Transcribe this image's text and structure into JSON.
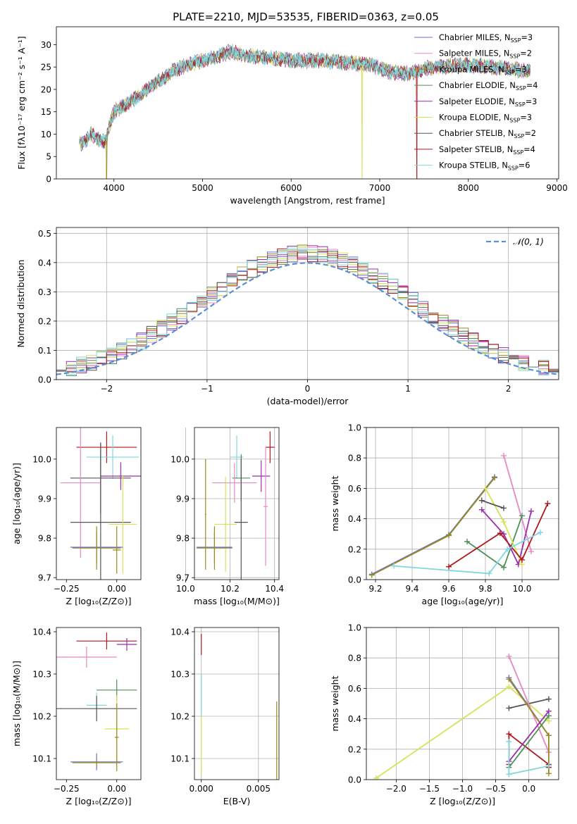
{
  "figure_title": "PLATE=2210, MJD=53535, FIBERID=0363, z=0.05",
  "model_legend": [
    {
      "base": "Chabrier MILES, N",
      "sub": "SSP",
      "suffix": "=3",
      "color": "#6673d6"
    },
    {
      "base": "Salpeter MILES, N",
      "sub": "SSP",
      "suffix": "=2",
      "color": "#e888c4"
    },
    {
      "base": "Kroupa MILES, N",
      "sub": "SSP",
      "suffix": "=3",
      "color": "#9a8a1e"
    },
    {
      "base": "Chabrier ELODIE, N",
      "sub": "SSP",
      "suffix": "=4",
      "color": "#4f8f58"
    },
    {
      "base": "Salpeter ELODIE, N",
      "sub": "SSP",
      "suffix": "=3",
      "color": "#9b2fae"
    },
    {
      "base": "Kroupa ELODIE, N",
      "sub": "SSP",
      "suffix": "=3",
      "color": "#d4e357"
    },
    {
      "base": "Chabrier STELIB, N",
      "sub": "SSP",
      "suffix": "=2",
      "color": "#555555"
    },
    {
      "base": "Salpeter STELIB, N",
      "sub": "SSP",
      "suffix": "=4",
      "color": "#b0191e"
    },
    {
      "base": "Kroupa STELIB, N",
      "sub": "SSP",
      "suffix": "=6",
      "color": "#7fd7e0"
    }
  ],
  "chart_data": [
    {
      "id": "spectrum",
      "type": "line",
      "title": "PLATE=2210, MJD=53535, FIBERID=0363, z=0.05",
      "xlabel": "wavelength [Angstrom, rest frame]",
      "ylabel": "Flux [fλ10⁻¹⁷ erg cm⁻² s⁻¹ A⁻¹]",
      "xlim": [
        3350,
        9020
      ],
      "ylim": [
        0,
        34
      ],
      "xticks": [
        "4000",
        "5000",
        "6000",
        "7000",
        "8000",
        "9000"
      ],
      "yticks": [
        "0",
        "5",
        "10",
        "15",
        "20",
        "25",
        "30"
      ],
      "continuum": [
        [
          3610,
          7.5
        ],
        [
          3750,
          10
        ],
        [
          3900,
          8
        ],
        [
          3950,
          12
        ],
        [
          4000,
          15
        ],
        [
          4200,
          17.5
        ],
        [
          4400,
          20.5
        ],
        [
          4700,
          24.5
        ],
        [
          5000,
          26.5
        ],
        [
          5200,
          27.5
        ],
        [
          5300,
          28.5
        ],
        [
          5500,
          27.5
        ],
        [
          5800,
          27
        ],
        [
          6000,
          26.5
        ],
        [
          6300,
          26.5
        ],
        [
          6600,
          26
        ],
        [
          6900,
          25.5
        ],
        [
          7100,
          24
        ],
        [
          7300,
          23.5
        ],
        [
          7600,
          25
        ],
        [
          8000,
          25.5
        ],
        [
          8500,
          24.5
        ],
        [
          8700,
          24
        ]
      ],
      "dropouts": [
        {
          "x": 3915,
          "model": 2
        },
        {
          "x": 6800,
          "model": 5
        },
        {
          "x": 7420,
          "model": 7
        }
      ]
    },
    {
      "id": "residuals",
      "type": "histogram",
      "xlabel": "(data-model)/error",
      "ylabel": "Normed distribution",
      "xlim": [
        -2.5,
        2.5
      ],
      "ylim": [
        0,
        0.52
      ],
      "xticks": [
        "−2",
        "−1",
        "0",
        "1",
        "2"
      ],
      "yticks": [
        "0.0",
        "0.1",
        "0.2",
        "0.3",
        "0.4",
        "0.5"
      ],
      "bin_width": 0.1,
      "legend": "𝒩(0, 1)",
      "gaussian_sigma": 1.0,
      "gaussian_color": "#5a8ed6"
    },
    {
      "id": "age_vs_Z",
      "type": "errorbar",
      "xlabel": "Z [log₁₀(Z/Z⊙)]",
      "ylabel": "age  [log₁₀(age/yr)]",
      "xlim": [
        -0.3,
        0.12
      ],
      "ylim": [
        9.695,
        10.08
      ],
      "xticks": [
        "−0.25",
        "0.00"
      ],
      "yticks": [
        "9.7",
        "9.8",
        "9.9",
        "10.0"
      ],
      "points": [
        {
          "model": 7,
          "x": -0.05,
          "y": 10.03,
          "xe": 0.15,
          "ye": 0.04
        },
        {
          "model": 8,
          "x": -0.02,
          "y": 10.005,
          "xe": 0.13,
          "ye": 0.055
        },
        {
          "model": 4,
          "x": 0.02,
          "y": 9.957,
          "xe": 0.1,
          "ye": 0.035
        },
        {
          "model": 6,
          "x": -0.08,
          "y": 9.952,
          "xe": 0.15,
          "ye": 0.09
        },
        {
          "model": 1,
          "x": -0.18,
          "y": 9.94,
          "xe": 0.1,
          "ye": 0.19
        },
        {
          "model": 6,
          "x": -0.08,
          "y": 9.84,
          "xe": 0.15,
          "ye": 0.2
        },
        {
          "model": 5,
          "x": 0.03,
          "y": 9.835,
          "xe": 0.07,
          "ye": 0.125
        },
        {
          "model": 0,
          "x": -0.1,
          "y": 9.777,
          "xe": 0.13,
          "ye": 0.04
        },
        {
          "model": 2,
          "x": -0.1,
          "y": 9.775,
          "xe": 0.12,
          "ye": 0.055
        },
        {
          "model": 2,
          "x": 0.0,
          "y": 9.77,
          "xe": 0.02,
          "ye": 0.06
        }
      ]
    },
    {
      "id": "age_vs_mass",
      "type": "errorbar",
      "xlabel": "mass [log₁₀(M/M⊙)]",
      "ylabel": "",
      "xlim": [
        10.04,
        10.42
      ],
      "ylim": [
        9.695,
        10.08
      ],
      "xticks": [
        "10.0",
        "10.2",
        "10.4"
      ],
      "yticks": [
        "9.7",
        "9.8",
        "9.9",
        "10.0"
      ],
      "points": [
        {
          "model": 7,
          "x": 10.38,
          "y": 10.03,
          "xe": 0.02,
          "ye": 0.04
        },
        {
          "model": 8,
          "x": 10.23,
          "y": 10.005,
          "xe": 0.03,
          "ye": 0.055
        },
        {
          "model": 4,
          "x": 10.34,
          "y": 9.957,
          "xe": 0.04,
          "ye": 0.04
        },
        {
          "model": 3,
          "x": 10.25,
          "y": 9.952,
          "xe": 0.04,
          "ye": 0.06
        },
        {
          "model": 1,
          "x": 10.22,
          "y": 9.94,
          "xe": 0.1,
          "ye": 0.05
        },
        {
          "model": 1,
          "x": 10.36,
          "y": 9.88,
          "xe": 0.01,
          "ye": 0.15
        },
        {
          "model": 6,
          "x": 10.25,
          "y": 9.84,
          "xe": 0.03,
          "ye": 0.16
        },
        {
          "model": 5,
          "x": 10.18,
          "y": 9.835,
          "xe": 0.05,
          "ye": 0.12
        },
        {
          "model": 0,
          "x": 10.13,
          "y": 9.777,
          "xe": 0.08,
          "ye": 0.04
        },
        {
          "model": 2,
          "x": 10.13,
          "y": 9.775,
          "xe": 0.08,
          "ye": 0.055
        },
        {
          "model": 2,
          "x": 10.09,
          "y": 9.86,
          "xe": 0.003,
          "ye": 0.14
        }
      ]
    },
    {
      "id": "weight_vs_age",
      "type": "line",
      "xlabel": "age  [log₁₀(age/yr)]",
      "ylabel": "mass weight",
      "xlim": [
        9.15,
        10.2
      ],
      "ylim": [
        0,
        1
      ],
      "xticks": [
        "9.2",
        "9.4",
        "9.6",
        "9.8",
        "10.0"
      ],
      "yticks": [
        "0.0",
        "0.2",
        "0.4",
        "0.6",
        "0.8",
        "1.0"
      ],
      "series": [
        {
          "model": 0,
          "x": [
            9.18,
            9.6,
            9.85
          ],
          "y": [
            0.035,
            0.295,
            0.675
          ]
        },
        {
          "model": 1,
          "x": [
            9.9,
            10.05
          ],
          "y": [
            0.815,
            0.185
          ]
        },
        {
          "model": 2,
          "x": [
            9.18,
            9.6,
            9.85
          ],
          "y": [
            0.03,
            0.29,
            0.67
          ]
        },
        {
          "model": 3,
          "x": [
            9.7,
            9.9,
            10.0
          ],
          "y": [
            0.25,
            0.08,
            0.42
          ]
        },
        {
          "model": 4,
          "x": [
            9.78,
            9.9,
            9.98,
            10.05
          ],
          "y": [
            0.46,
            0.3,
            0.1,
            0.45
          ]
        },
        {
          "model": 5,
          "x": [
            9.8,
            9.9,
            10.0
          ],
          "y": [
            0.6,
            0.38,
            0.1
          ]
        },
        {
          "model": 6,
          "x": [
            9.78,
            9.9
          ],
          "y": [
            0.52,
            0.47
          ]
        },
        {
          "model": 7,
          "x": [
            9.6,
            9.88,
            10.0,
            10.14
          ],
          "y": [
            0.085,
            0.305,
            0.13,
            0.5
          ]
        },
        {
          "model": 8,
          "x": [
            9.3,
            9.82,
            9.92,
            10.1
          ],
          "y": [
            0.09,
            0.04,
            0.2,
            0.31
          ]
        }
      ]
    },
    {
      "id": "mass_vs_Z",
      "type": "errorbar",
      "xlabel": "Z [log₁₀(Z/Z⊙)]",
      "ylabel": "mass [log₁₀(M/M⊙)]",
      "xlim": [
        -0.3,
        0.12
      ],
      "ylim": [
        10.05,
        10.41
      ],
      "xticks": [
        "−0.25",
        "0.00"
      ],
      "yticks": [
        "10.1",
        "10.2",
        "10.3",
        "10.4"
      ],
      "points": [
        {
          "model": 7,
          "x": -0.05,
          "y": 10.378,
          "xe": 0.15,
          "ye": 0.02
        },
        {
          "model": 4,
          "x": 0.05,
          "y": 10.37,
          "xe": 0.05,
          "ye": 0.015
        },
        {
          "model": 1,
          "x": -0.15,
          "y": 10.34,
          "xe": 0.15,
          "ye": 0.025
        },
        {
          "model": 3,
          "x": 0.0,
          "y": 10.262,
          "xe": 0.1,
          "ye": 0.025
        },
        {
          "model": 8,
          "x": -0.1,
          "y": 10.226,
          "xe": 0.05,
          "ye": 0.03
        },
        {
          "model": 6,
          "x": -0.1,
          "y": 10.218,
          "xe": 0.2,
          "ye": 0.03
        },
        {
          "model": 5,
          "x": 0.0,
          "y": 10.17,
          "xe": 0.06,
          "ye": 0.08
        },
        {
          "model": 0,
          "x": -0.1,
          "y": 10.092,
          "xe": 0.13,
          "ye": 0.02
        },
        {
          "model": 2,
          "x": -0.1,
          "y": 10.09,
          "xe": 0.12,
          "ye": 0.01
        },
        {
          "model": 2,
          "x": 0.0,
          "y": 10.15,
          "xe": 0.01,
          "ye": 0.08
        }
      ]
    },
    {
      "id": "mass_vs_ebv",
      "type": "errorbar",
      "xlabel": "E(B-V)",
      "ylabel": "",
      "xlim": [
        -0.0006,
        0.0068
      ],
      "ylim": [
        10.05,
        10.41
      ],
      "xticks": [
        "0.000",
        "0.005"
      ],
      "yticks": [
        "10.1",
        "10.2",
        "10.3",
        "10.4"
      ],
      "points": [
        {
          "model": 7,
          "x": 0.0,
          "y": 10.37,
          "xe": 0,
          "ye": 0.025
        },
        {
          "model": 8,
          "x": 0.0,
          "y": 10.25,
          "xe": 0,
          "ye": 0.05
        },
        {
          "model": 5,
          "x": 0.0,
          "y": 10.13,
          "xe": 0,
          "ye": 0.07
        },
        {
          "model": 2,
          "x": 0.0066,
          "y": 10.14,
          "xe": 0,
          "ye": 0.095
        }
      ]
    },
    {
      "id": "weight_vs_Z",
      "type": "line",
      "xlabel": "Z [log₁₀(Z/Z⊙)]",
      "ylabel": "mass weight",
      "xlim": [
        -2.45,
        0.45
      ],
      "ylim": [
        0,
        1
      ],
      "xticks": [
        "−2.0",
        "−1.5",
        "−1.0",
        "−0.5",
        "0.0"
      ],
      "yticks": [
        "0.0",
        "0.2",
        "0.4",
        "0.6",
        "0.8",
        "1.0"
      ],
      "series": [
        {
          "model": 5,
          "x": [
            -2.3,
            -0.3,
            0.3
          ],
          "y": [
            0.01,
            0.61,
            0.385
          ]
        },
        {
          "model": 6,
          "x": [
            -0.3,
            0.3
          ],
          "y": [
            0.47,
            0.53
          ]
        },
        {
          "model": 7,
          "x": [
            -0.3,
            -0.3,
            0.3,
            0.3
          ],
          "y": [
            0.1,
            0.3,
            0.1,
            0.08
          ]
        },
        {
          "model": 0,
          "x": [
            -0.3,
            0.3
          ],
          "y": [
            0.67,
            0.29
          ]
        },
        {
          "model": 1,
          "x": [
            -0.3,
            0.3
          ],
          "y": [
            0.81,
            0.18
          ]
        },
        {
          "model": 2,
          "x": [
            -0.3,
            0.3,
            0.3
          ],
          "y": [
            0.66,
            0.29,
            0.04
          ]
        },
        {
          "model": 3,
          "x": [
            -0.3,
            0.3
          ],
          "y": [
            0.08,
            0.42
          ]
        },
        {
          "model": 4,
          "x": [
            -0.3,
            0.3
          ],
          "y": [
            0.12,
            0.45
          ]
        },
        {
          "model": 8,
          "x": [
            -0.3,
            -0.3,
            0.3
          ],
          "y": [
            0.25,
            0.035,
            0.09
          ]
        }
      ]
    }
  ]
}
